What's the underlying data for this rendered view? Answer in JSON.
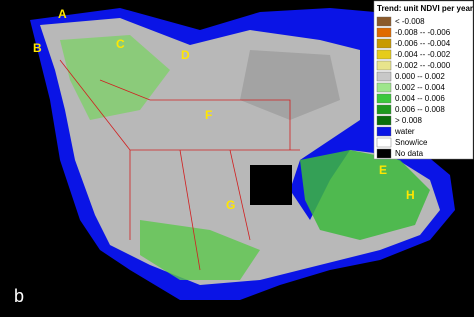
{
  "legend": {
    "title": "Trend: unit NDVI per year",
    "items": [
      {
        "label": "< -0.008",
        "color": "#8b5a2b"
      },
      {
        "label": "-0.008 -- -0.006",
        "color": "#e06a00"
      },
      {
        "label": "-0.006 -- -0.004",
        "color": "#c89a00"
      },
      {
        "label": "-0.004 -- -0.002",
        "color": "#e6cc1a"
      },
      {
        "label": "-0.002 -- -0.000",
        "color": "#e8e48c"
      },
      {
        "label": "0.000 -- 0.002",
        "color": "#c8c8c8"
      },
      {
        "label": "0.002 -- 0.004",
        "color": "#9ee68c"
      },
      {
        "label": "0.004 -- 0.006",
        "color": "#3cc83c"
      },
      {
        "label": "0.006 -- 0.008",
        "color": "#1e9a1e"
      },
      {
        "label": "> 0.008",
        "color": "#0a6e0a"
      },
      {
        "label": "water",
        "color": "#0a14e6"
      },
      {
        "label": "Snow/ice",
        "color": "#ffffff"
      },
      {
        "label": "No data",
        "color": "#000000"
      }
    ]
  },
  "site_labels": [
    "A",
    "B",
    "C",
    "D",
    "E",
    "F",
    "G",
    "H"
  ],
  "panel_label": "b"
}
